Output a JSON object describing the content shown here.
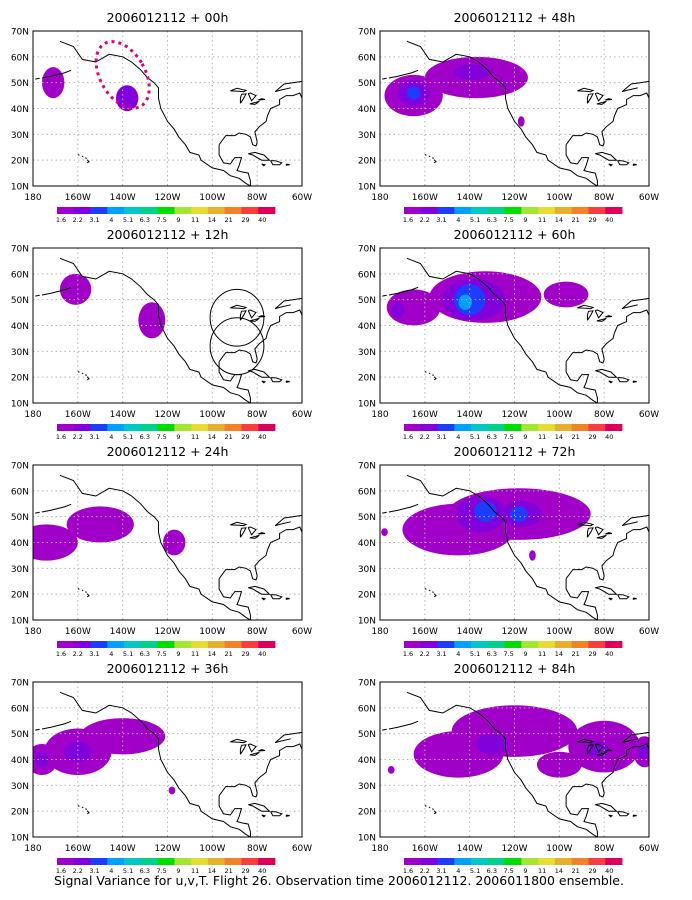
{
  "figure": {
    "caption": "Signal Variance for u,v,T. Flight 26. Observation time 2006012112. 2006011800 ensemble."
  },
  "colors": {
    "levels": [
      "#a000c8",
      "#8200dc",
      "#1e3cff",
      "#00a0ff",
      "#00c8c8",
      "#00d28c",
      "#00dc00",
      "#a0e632",
      "#e6dc32",
      "#e6af2d",
      "#f08228",
      "#fa3c3c",
      "#dc005a"
    ],
    "frame": "#000000",
    "grid": "#b4b4b4",
    "dotted_contour": "#e0007a"
  },
  "colorbar": {
    "labels": [
      "1.6",
      "2.2",
      "3.1",
      "4",
      "5.1",
      "6.3",
      "7.5",
      "9",
      "11",
      "14",
      "21",
      "29",
      "40"
    ]
  },
  "chart_data": [
    {
      "type": "heatmap",
      "title": "2006012112 + 00h",
      "xticks": [
        "180",
        "160W",
        "140W",
        "120W",
        "100W",
        "80W",
        "60W"
      ],
      "yticks": [
        "10N",
        "20N",
        "30N",
        "40N",
        "50N",
        "60N",
        "70N"
      ],
      "xlim": [
        -180,
        -60
      ],
      "ylim": [
        10,
        70
      ],
      "grid": true,
      "blobs": [
        {
          "lon": -171,
          "lat": 50,
          "w": 5,
          "h": 6,
          "level": 0
        },
        {
          "lon": -138,
          "lat": 44,
          "w": 5,
          "h": 5,
          "level": 1
        }
      ],
      "dotted": [
        {
          "lon": -140,
          "lat": 53,
          "w": 20,
          "h": 28
        }
      ],
      "circles": []
    },
    {
      "type": "heatmap",
      "title": "2006012112 + 12h",
      "xticks": [
        "180",
        "160W",
        "140W",
        "120W",
        "100W",
        "80W",
        "60W"
      ],
      "yticks": [
        "10N",
        "20N",
        "30N",
        "40N",
        "50N",
        "60N",
        "70N"
      ],
      "xlim": [
        -180,
        -60
      ],
      "ylim": [
        10,
        70
      ],
      "grid": true,
      "blobs": [
        {
          "lon": -161,
          "lat": 54,
          "w": 7,
          "h": 6,
          "level": 0
        },
        {
          "lon": -127,
          "lat": 42,
          "w": 6,
          "h": 7,
          "level": 0
        }
      ],
      "dotted": [],
      "circles": [
        {
          "lon": -89,
          "lat": 43,
          "rlon": 12,
          "rlat": 11
        },
        {
          "lon": -89,
          "lat": 32,
          "rlon": 12,
          "rlat": 11
        }
      ]
    },
    {
      "type": "heatmap",
      "title": "2006012112 + 24h",
      "xticks": [
        "180",
        "160W",
        "140W",
        "120W",
        "100W",
        "80W",
        "60W"
      ],
      "yticks": [
        "10N",
        "20N",
        "30N",
        "40N",
        "50N",
        "60N",
        "70N"
      ],
      "xlim": [
        -180,
        -60
      ],
      "ylim": [
        10,
        70
      ],
      "grid": true,
      "blobs": [
        {
          "lon": -174,
          "lat": 40,
          "w": 14,
          "h": 7,
          "level": 0
        },
        {
          "lon": -150,
          "lat": 47,
          "w": 15,
          "h": 7,
          "level": 0
        },
        {
          "lon": -117,
          "lat": 40,
          "w": 5,
          "h": 5,
          "level": 0
        }
      ],
      "dotted": [],
      "circles": []
    },
    {
      "type": "heatmap",
      "title": "2006012112 + 36h",
      "xticks": [
        "180",
        "160W",
        "140W",
        "120W",
        "100W",
        "80W",
        "60W"
      ],
      "yticks": [
        "10N",
        "20N",
        "30N",
        "40N",
        "50N",
        "60N",
        "70N"
      ],
      "xlim": [
        -180,
        -60
      ],
      "ylim": [
        10,
        70
      ],
      "grid": true,
      "blobs": [
        {
          "lon": -176,
          "lat": 40,
          "w": 7,
          "h": 6,
          "level": 0
        },
        {
          "lon": -160,
          "lat": 43,
          "w": 15,
          "h": 9,
          "level": 0
        },
        {
          "lon": -140,
          "lat": 49,
          "w": 19,
          "h": 7,
          "level": 0
        },
        {
          "lon": -160,
          "lat": 43,
          "w": 6,
          "h": 4,
          "level": 1
        },
        {
          "lon": -176,
          "lat": 40,
          "w": 3,
          "h": 3,
          "level": 1
        },
        {
          "lon": -118,
          "lat": 28,
          "w": 1.5,
          "h": 1.5,
          "level": 0
        }
      ],
      "dotted": [],
      "circles": []
    },
    {
      "type": "heatmap",
      "title": "2006012112 + 48h",
      "xticks": [
        "180",
        "160W",
        "140W",
        "120W",
        "100W",
        "80W",
        "60W"
      ],
      "yticks": [
        "10N",
        "20N",
        "30N",
        "40N",
        "50N",
        "60N",
        "70N"
      ],
      "xlim": [
        -180,
        -60
      ],
      "ylim": [
        10,
        70
      ],
      "grid": true,
      "blobs": [
        {
          "lon": -165,
          "lat": 45,
          "w": 13,
          "h": 8,
          "level": 0
        },
        {
          "lon": -137,
          "lat": 52,
          "w": 23,
          "h": 8,
          "level": 0
        },
        {
          "lon": -165,
          "lat": 46,
          "w": 7,
          "h": 5,
          "level": 1
        },
        {
          "lon": -165,
          "lat": 46,
          "w": 3,
          "h": 2.5,
          "level": 2
        },
        {
          "lon": -139,
          "lat": 54,
          "w": 8,
          "h": 3,
          "level": 1
        },
        {
          "lon": -117,
          "lat": 35,
          "w": 1.5,
          "h": 2,
          "level": 0
        }
      ],
      "dotted": [],
      "circles": []
    },
    {
      "type": "heatmap",
      "title": "2006012112 + 60h",
      "xticks": [
        "180",
        "160W",
        "140W",
        "120W",
        "100W",
        "80W",
        "60W"
      ],
      "yticks": [
        "10N",
        "20N",
        "30N",
        "40N",
        "50N",
        "60N",
        "70N"
      ],
      "xlim": [
        -180,
        -60
      ],
      "ylim": [
        10,
        70
      ],
      "grid": true,
      "blobs": [
        {
          "lon": -165,
          "lat": 47,
          "w": 12,
          "h": 7,
          "level": 0
        },
        {
          "lon": -133,
          "lat": 51,
          "w": 25,
          "h": 10,
          "level": 0
        },
        {
          "lon": -97,
          "lat": 52,
          "w": 10,
          "h": 5,
          "level": 0
        },
        {
          "lon": -138,
          "lat": 50,
          "w": 14,
          "h": 8,
          "level": 1
        },
        {
          "lon": -140,
          "lat": 50,
          "w": 7,
          "h": 6,
          "level": 2
        },
        {
          "lon": -142,
          "lat": 49,
          "w": 3,
          "h": 3,
          "level": 3
        },
        {
          "lon": -172,
          "lat": 46,
          "w": 3,
          "h": 3,
          "level": 1
        }
      ],
      "dotted": [],
      "circles": []
    },
    {
      "type": "heatmap",
      "title": "2006012112 + 72h",
      "xticks": [
        "180",
        "160W",
        "140W",
        "120W",
        "100W",
        "80W",
        "60W"
      ],
      "yticks": [
        "10N",
        "20N",
        "30N",
        "40N",
        "50N",
        "60N",
        "70N"
      ],
      "xlim": [
        -180,
        -60
      ],
      "ylim": [
        10,
        70
      ],
      "grid": true,
      "blobs": [
        {
          "lon": -145,
          "lat": 45,
          "w": 25,
          "h": 10,
          "level": 0
        },
        {
          "lon": -118,
          "lat": 51,
          "w": 32,
          "h": 10,
          "level": 0
        },
        {
          "lon": -135,
          "lat": 51,
          "w": 11,
          "h": 7,
          "level": 1
        },
        {
          "lon": -117,
          "lat": 51,
          "w": 9,
          "h": 5,
          "level": 1
        },
        {
          "lon": -133,
          "lat": 52,
          "w": 5,
          "h": 4,
          "level": 2
        },
        {
          "lon": -118,
          "lat": 51,
          "w": 4,
          "h": 3,
          "level": 2
        },
        {
          "lon": -178,
          "lat": 44,
          "w": 1.5,
          "h": 1.5,
          "level": 0
        },
        {
          "lon": -112,
          "lat": 35,
          "w": 1.5,
          "h": 2,
          "level": 0
        }
      ],
      "dotted": [],
      "circles": []
    },
    {
      "type": "heatmap",
      "title": "2006012112 + 84h",
      "xticks": [
        "180",
        "160W",
        "140W",
        "120W",
        "100W",
        "80W",
        "60W"
      ],
      "yticks": [
        "10N",
        "20N",
        "30N",
        "40N",
        "50N",
        "60N",
        "70N"
      ],
      "xlim": [
        -180,
        -60
      ],
      "ylim": [
        10,
        70
      ],
      "grid": true,
      "blobs": [
        {
          "lon": -145,
          "lat": 42,
          "w": 20,
          "h": 9,
          "level": 0
        },
        {
          "lon": -120,
          "lat": 51,
          "w": 28,
          "h": 10,
          "level": 0
        },
        {
          "lon": -80,
          "lat": 45,
          "w": 16,
          "h": 10,
          "level": 0
        },
        {
          "lon": -100,
          "lat": 38,
          "w": 10,
          "h": 5,
          "level": 0
        },
        {
          "lon": -62,
          "lat": 43,
          "w": 5,
          "h": 6,
          "level": 0
        },
        {
          "lon": -83,
          "lat": 44,
          "w": 5,
          "h": 3,
          "level": 1
        },
        {
          "lon": -130,
          "lat": 46,
          "w": 7,
          "h": 4,
          "level": 1
        },
        {
          "lon": -62,
          "lat": 43,
          "w": 2.5,
          "h": 3,
          "level": 1
        },
        {
          "lon": -175,
          "lat": 36,
          "w": 1.5,
          "h": 1.5,
          "level": 0
        }
      ],
      "dotted": [],
      "circles": []
    }
  ]
}
